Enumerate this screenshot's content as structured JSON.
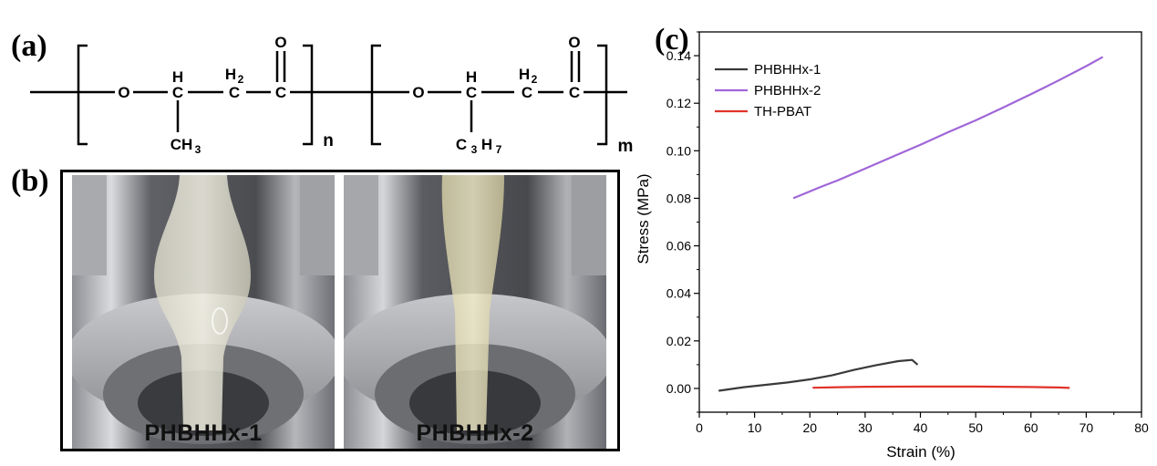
{
  "panels": {
    "a_label": "(a)",
    "b_label": "(b)",
    "c_label": "(c)"
  },
  "structure": {
    "atom_o": "O",
    "atom_h": "H",
    "atom_h2": "H",
    "sub_2": "2",
    "atom_c": "C",
    "ch3": "CH",
    "sub_3": "3",
    "c3h7_c": "C",
    "c3h7_h": "H",
    "sub_7": "7",
    "repeat_n": "n",
    "repeat_m": "m"
  },
  "photos": [
    {
      "caption": "PHBHHx-1"
    },
    {
      "caption": "PHBHHx-2"
    }
  ],
  "colors": {
    "phbhhx1": "#3a3a3a",
    "phbhhx2": "#a066d8",
    "thpbat": "#e0332a"
  },
  "chart_data": {
    "type": "line",
    "xlabel": "Strain (%)",
    "ylabel": "Stress (MPa)",
    "xlim": [
      0,
      80
    ],
    "ylim": [
      -0.01,
      0.15
    ],
    "x_ticks": [
      0,
      10,
      20,
      30,
      40,
      50,
      60,
      70,
      80
    ],
    "y_ticks": [
      0.0,
      0.02,
      0.04,
      0.06,
      0.08,
      0.1,
      0.12,
      0.14
    ],
    "x_tick_labels": [
      "0",
      "10",
      "20",
      "30",
      "40",
      "50",
      "60",
      "70",
      "80"
    ],
    "y_tick_labels": [
      "0.00",
      "0.02",
      "0.04",
      "0.06",
      "0.08",
      "0.10",
      "0.12",
      "0.14"
    ],
    "grid": false,
    "legend_position": "top-left",
    "series": [
      {
        "name": "PHBHHx-1",
        "x": [
          3.5,
          8,
          12,
          16,
          20,
          24,
          28,
          32,
          36,
          38.5,
          39.5
        ],
        "y": [
          -0.001,
          0.0005,
          0.0015,
          0.0025,
          0.0038,
          0.0055,
          0.0078,
          0.0098,
          0.0115,
          0.012,
          0.01
        ]
      },
      {
        "name": "PHBHHx-2",
        "x": [
          17,
          22,
          25,
          30,
          35,
          40,
          45,
          50,
          55,
          60,
          65,
          70,
          73
        ],
        "y": [
          0.08,
          0.0848,
          0.0875,
          0.0925,
          0.0975,
          0.1025,
          0.1078,
          0.1128,
          0.1182,
          0.1238,
          0.1296,
          0.1356,
          0.1395
        ]
      },
      {
        "name": "TH-PBAT",
        "x": [
          20.5,
          25,
          30,
          40,
          50,
          60,
          65,
          67
        ],
        "y": [
          0.0003,
          0.0005,
          0.0007,
          0.0008,
          0.0008,
          0.0006,
          0.0004,
          0.0002
        ]
      }
    ]
  }
}
